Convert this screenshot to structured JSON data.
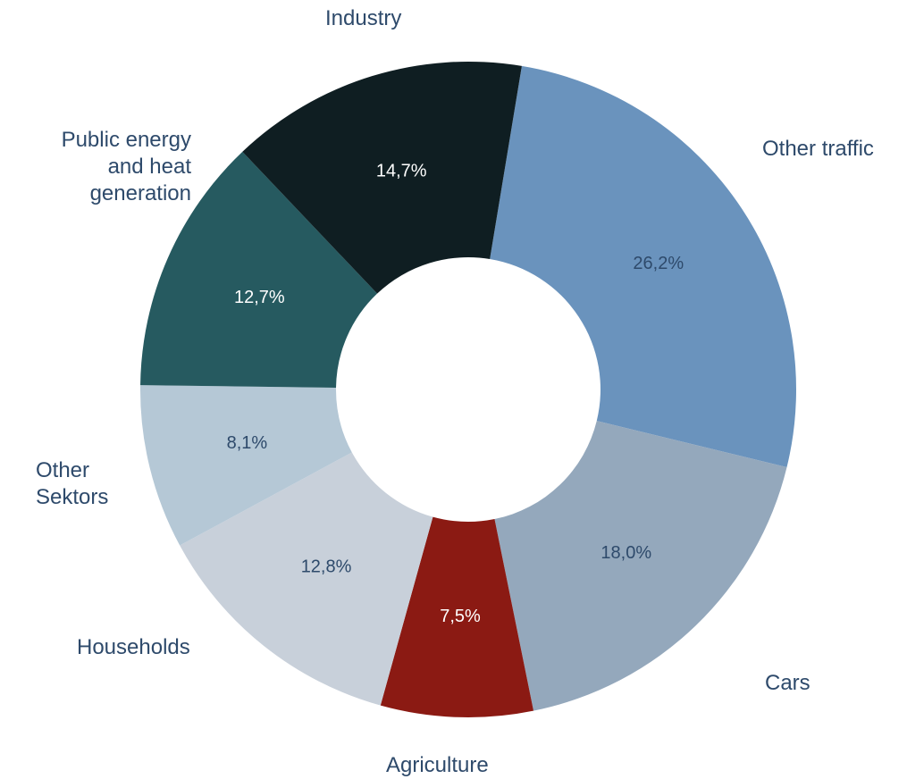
{
  "chart_data": {
    "type": "donut",
    "categories": [
      "Other traffic",
      "Cars",
      "Agriculture",
      "Households",
      "Other Sektors",
      "Public energy and heat generation",
      "Industry"
    ],
    "values": [
      26.2,
      18.0,
      7.5,
      12.8,
      8.1,
      12.7,
      14.7
    ],
    "value_labels": [
      "26,2%",
      "18,0%",
      "7,5%",
      "12,8%",
      "8,1%",
      "12,7%",
      "14,7%"
    ],
    "colors": [
      "#6a93bd",
      "#94a8bc",
      "#8b1a13",
      "#c8d0da",
      "#b5c8d6",
      "#265a60",
      "#0f1e22"
    ]
  }
}
